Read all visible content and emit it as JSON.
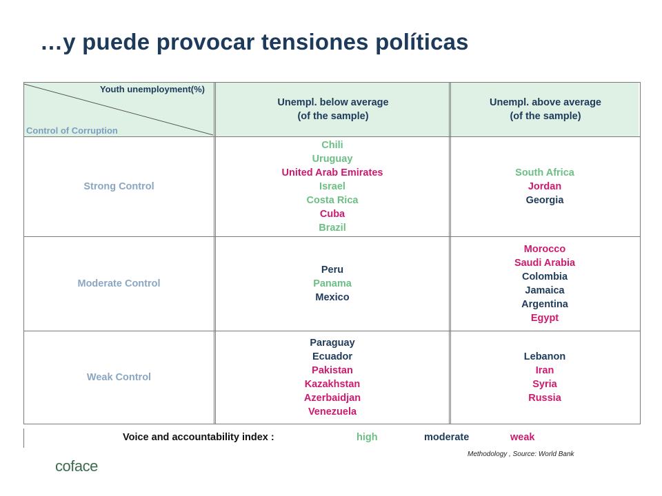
{
  "title": "…y puede provocar tensiones políticas",
  "table": {
    "corner_col_label": "Youth unemployment(%)",
    "corner_row_label": "Control of Corruption",
    "columns": [
      {
        "line1": "Unempl. below average",
        "line2": "(of the sample)"
      },
      {
        "line1": "Unempl. above average",
        "line2": "(of the sample)"
      }
    ],
    "rows": [
      {
        "label": "Strong Control",
        "below": [
          {
            "name": "Chili",
            "level": "high"
          },
          {
            "name": "Uruguay",
            "level": "high"
          },
          {
            "name": "United Arab Emirates",
            "level": "weak"
          },
          {
            "name": "Israel",
            "level": "high"
          },
          {
            "name": "Costa Rica",
            "level": "high"
          },
          {
            "name": "Cuba",
            "level": "weak"
          },
          {
            "name": "Brazil",
            "level": "high"
          }
        ],
        "above": [
          {
            "name": "South Africa",
            "level": "high"
          },
          {
            "name": "Jordan",
            "level": "weak"
          },
          {
            "name": "Georgia",
            "level": "moderate"
          }
        ]
      },
      {
        "label": "Moderate Control",
        "below": [
          {
            "name": "Peru",
            "level": "moderate"
          },
          {
            "name": "Panama",
            "level": "high"
          },
          {
            "name": "Mexico",
            "level": "moderate"
          }
        ],
        "above": [
          {
            "name": "Morocco",
            "level": "weak"
          },
          {
            "name": "Saudi Arabia",
            "level": "weak"
          },
          {
            "name": "Colombia",
            "level": "moderate"
          },
          {
            "name": "Jamaica",
            "level": "moderate"
          },
          {
            "name": "Argentina",
            "level": "moderate"
          },
          {
            "name": "Egypt",
            "level": "weak"
          }
        ]
      },
      {
        "label": "Weak Control",
        "below": [
          {
            "name": "Paraguay",
            "level": "moderate"
          },
          {
            "name": "Ecuador",
            "level": "moderate"
          },
          {
            "name": "Pakistan",
            "level": "weak"
          },
          {
            "name": "Kazakhstan",
            "level": "weak"
          },
          {
            "name": "Azerbaidjan",
            "level": "weak"
          },
          {
            "name": "Venezuela",
            "level": "weak"
          }
        ],
        "above": [
          {
            "name": "Lebanon",
            "level": "moderate"
          },
          {
            "name": "Iran",
            "level": "weak"
          },
          {
            "name": "Syria",
            "level": "weak"
          },
          {
            "name": "Russia",
            "level": "weak"
          }
        ]
      }
    ]
  },
  "legend": {
    "label": "Voice and accountability index :",
    "high": "high",
    "moderate": "moderate",
    "weak": "weak"
  },
  "colors": {
    "high": "#6cbf84",
    "moderate": "#1d3a5a",
    "weak": "#cc1a6e",
    "header_bg": "#dff1e5"
  },
  "source": "Methodology , Source: World Bank",
  "logo": {
    "icon": "coface-logo",
    "text": "coface"
  }
}
